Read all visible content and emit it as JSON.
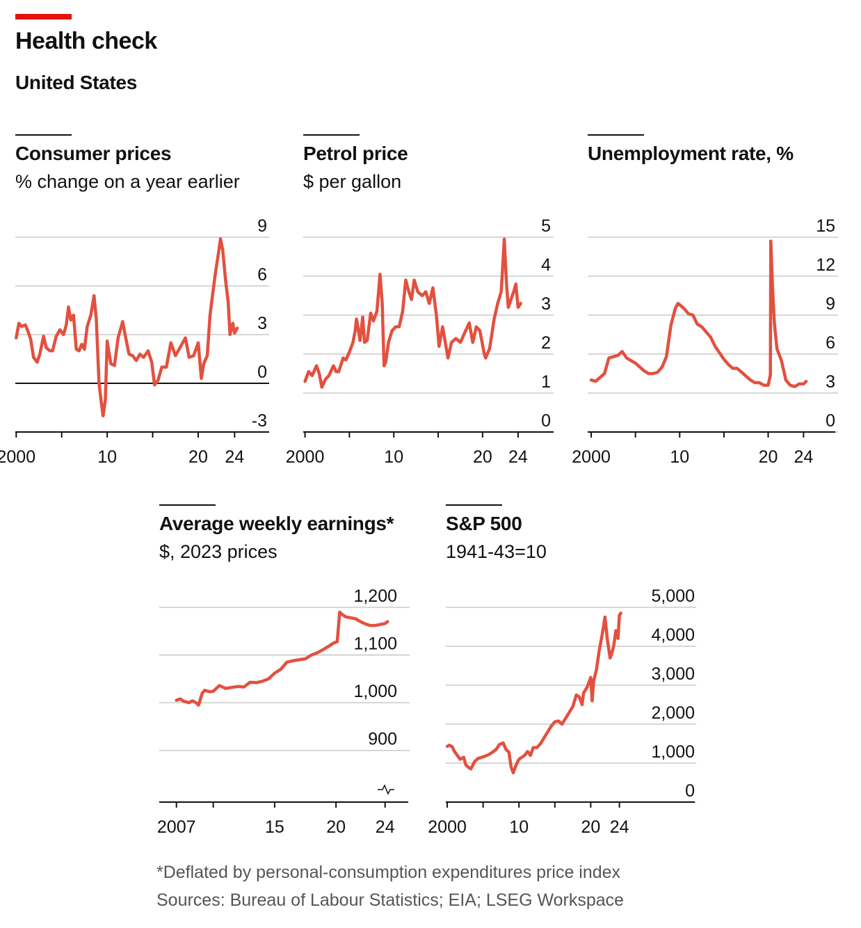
{
  "header": {
    "title": "Health check",
    "subtitle": "United States"
  },
  "footnote": "*Deflated by personal-consumption expenditures price index",
  "source": "Sources: Bureau of Labour Statistics; EIA; LSEG Workspace",
  "colors": {
    "accent": "#e3120b",
    "line": "#e3503f",
    "grid": "#bfbfbf",
    "zero": "#111111"
  },
  "chart_data": [
    {
      "id": "cpi",
      "type": "line",
      "title": "Consumer prices",
      "subtitle": "% change on a year earlier",
      "ylim": [
        -3,
        9
      ],
      "yticks": [
        9,
        6,
        3,
        0,
        -3
      ],
      "xlim": [
        1999.9,
        2027.8
      ],
      "xticks": [
        2000,
        2005,
        2010,
        2015,
        2020,
        2024
      ],
      "xtick_labels": {
        "2000": "2000",
        "2010": "10",
        "2020": "20",
        "2024": "24"
      },
      "zero_line": 0,
      "series": [
        {
          "x": [
            2000,
            2000.3,
            2000.6,
            2001,
            2001.3,
            2001.6,
            2001.9,
            2002.3,
            2002.6,
            2003,
            2003.3,
            2003.7,
            2004,
            2004.4,
            2004.8,
            2005.2,
            2005.5,
            2005.75,
            2006,
            2006.3,
            2006.6,
            2006.9,
            2007.2,
            2007.5,
            2007.8,
            2008.2,
            2008.55,
            2008.8,
            2009.1,
            2009.4,
            2009.55,
            2009.8,
            2010,
            2010.4,
            2010.8,
            2011.2,
            2011.7,
            2012,
            2012.4,
            2012.8,
            2013.2,
            2013.6,
            2014,
            2014.5,
            2014.9,
            2015.2,
            2015.6,
            2016,
            2016.5,
            2017,
            2017.5,
            2018,
            2018.6,
            2019,
            2019.5,
            2020,
            2020.35,
            2020.6,
            2021,
            2021.3,
            2021.55,
            2021.9,
            2022.2,
            2022.45,
            2022.7,
            2023,
            2023.3,
            2023.5,
            2023.8,
            2024,
            2024.3
          ],
          "y": [
            2.8,
            3.7,
            3.5,
            3.6,
            3.2,
            2.7,
            1.6,
            1.3,
            1.8,
            2.9,
            2.2,
            2.0,
            2.0,
            2.9,
            3.3,
            3.0,
            3.6,
            4.7,
            3.9,
            4.2,
            2.1,
            2.0,
            2.4,
            2.1,
            3.5,
            4.2,
            5.4,
            4.0,
            0.0,
            -1.4,
            -2.0,
            -1.0,
            2.6,
            1.2,
            1.1,
            2.8,
            3.8,
            2.9,
            1.8,
            1.7,
            1.4,
            1.8,
            1.6,
            2.0,
            1.3,
            -0.1,
            0.2,
            1.0,
            1.0,
            2.5,
            1.7,
            2.2,
            2.8,
            1.6,
            1.7,
            2.5,
            0.3,
            1.2,
            1.7,
            4.2,
            5.3,
            6.8,
            7.9,
            8.9,
            8.2,
            6.4,
            5.0,
            3.0,
            3.7,
            3.1,
            3.4
          ]
        }
      ]
    },
    {
      "id": "petrol",
      "type": "line",
      "title": "Petrol price",
      "subtitle": "$ per gallon",
      "ylim": [
        0,
        5
      ],
      "yticks": [
        5,
        4,
        3,
        2,
        1,
        0
      ],
      "xlim": [
        1999.8,
        2028.0
      ],
      "xticks": [
        2000,
        2005,
        2010,
        2015,
        2020,
        2024
      ],
      "xtick_labels": {
        "2000": "2000",
        "2010": "10",
        "2020": "20",
        "2024": "24"
      },
      "series": [
        {
          "x": [
            2000,
            2000.4,
            2000.8,
            2001.3,
            2001.6,
            2001.9,
            2002.3,
            2002.7,
            2003.2,
            2003.5,
            2003.8,
            2004.3,
            2004.6,
            2005,
            2005.4,
            2005.65,
            2005.8,
            2006.2,
            2006.5,
            2006.7,
            2007,
            2007.4,
            2007.7,
            2008.1,
            2008.45,
            2008.7,
            2008.9,
            2009.1,
            2009.4,
            2009.8,
            2010.2,
            2010.6,
            2011,
            2011.35,
            2011.7,
            2012,
            2012.3,
            2012.7,
            2013.2,
            2013.6,
            2014,
            2014.4,
            2014.8,
            2015.1,
            2015.5,
            2015.8,
            2016.1,
            2016.5,
            2017,
            2017.5,
            2018,
            2018.5,
            2018.9,
            2019.3,
            2019.7,
            2020.2,
            2020.35,
            2020.8,
            2021.3,
            2021.7,
            2022.1,
            2022.45,
            2022.7,
            2022.9,
            2023.2,
            2023.5,
            2023.75,
            2024,
            2024.3
          ],
          "y": [
            1.3,
            1.55,
            1.45,
            1.7,
            1.5,
            1.15,
            1.35,
            1.45,
            1.7,
            1.55,
            1.55,
            1.9,
            1.85,
            2.05,
            2.3,
            2.6,
            2.9,
            2.35,
            2.95,
            2.3,
            2.35,
            3.05,
            2.85,
            3.1,
            4.05,
            3.3,
            1.7,
            1.8,
            2.3,
            2.6,
            2.7,
            2.7,
            3.1,
            3.9,
            3.6,
            3.4,
            3.9,
            3.6,
            3.5,
            3.6,
            3.3,
            3.7,
            3.0,
            2.2,
            2.7,
            2.3,
            1.9,
            2.3,
            2.4,
            2.3,
            2.55,
            2.8,
            2.3,
            2.7,
            2.6,
            2.0,
            1.9,
            2.15,
            2.9,
            3.3,
            3.6,
            4.95,
            3.8,
            3.2,
            3.4,
            3.6,
            3.8,
            3.2,
            3.3
          ]
        }
      ]
    },
    {
      "id": "unemployment",
      "type": "line",
      "title": "Unemployment rate, %",
      "subtitle": "",
      "ylim": [
        0,
        15
      ],
      "yticks": [
        15,
        12,
        9,
        6,
        3,
        0
      ],
      "xlim": [
        1999.6,
        2027.9
      ],
      "xticks": [
        2000,
        2005,
        2010,
        2015,
        2020,
        2024
      ],
      "xtick_labels": {
        "2000": "2000",
        "2010": "10",
        "2020": "20",
        "2024": "24"
      },
      "series": [
        {
          "x": [
            2000,
            2000.5,
            2001,
            2001.5,
            2002,
            2002.5,
            2003,
            2003.5,
            2004,
            2004.5,
            2005,
            2005.5,
            2006,
            2006.5,
            2007,
            2007.5,
            2008,
            2008.5,
            2009,
            2009.5,
            2009.8,
            2010,
            2010.5,
            2011,
            2011.5,
            2012,
            2012.5,
            2013,
            2013.5,
            2014,
            2014.5,
            2015,
            2015.5,
            2016,
            2016.5,
            2017,
            2017.5,
            2018,
            2018.5,
            2019,
            2019.5,
            2020,
            2020.25,
            2020.3,
            2020.5,
            2020.7,
            2021,
            2021.5,
            2022,
            2022.5,
            2023,
            2023.5,
            2024,
            2024.3
          ],
          "y": [
            4.0,
            3.9,
            4.2,
            4.5,
            5.7,
            5.8,
            5.9,
            6.2,
            5.7,
            5.5,
            5.3,
            5.0,
            4.7,
            4.5,
            4.5,
            4.6,
            5.0,
            5.8,
            8.2,
            9.5,
            9.9,
            9.8,
            9.5,
            9.1,
            9.0,
            8.3,
            8.1,
            7.7,
            7.3,
            6.6,
            6.1,
            5.6,
            5.2,
            4.9,
            4.9,
            4.6,
            4.3,
            4.0,
            3.8,
            3.8,
            3.6,
            3.6,
            4.4,
            14.7,
            11.0,
            8.4,
            6.4,
            5.5,
            4.0,
            3.6,
            3.5,
            3.7,
            3.7,
            3.9
          ]
        }
      ]
    },
    {
      "id": "earnings",
      "type": "line",
      "title": "Average weekly earnings*",
      "subtitle": "$, 2023 prices",
      "ylim": [
        850,
        1200
      ],
      "yticks": [
        1200,
        1100,
        1000,
        900
      ],
      "ytick_labels": {
        "1200": "1,200",
        "1100": "1,100",
        "1000": "1,000",
        "900": "900"
      },
      "xlim": [
        2005.6,
        2026.0
      ],
      "xticks": [
        2007,
        2010,
        2015,
        2020,
        2024
      ],
      "xtick_labels": {
        "2007": "2007",
        "2015": "15",
        "2020": "20",
        "2024": "24"
      },
      "axis_break": true,
      "series": [
        {
          "x": [
            2007,
            2007.3,
            2007.6,
            2008,
            2008.3,
            2008.6,
            2008.8,
            2009.1,
            2009.3,
            2009.7,
            2010,
            2010.5,
            2011,
            2011.5,
            2012,
            2012.5,
            2013,
            2013.5,
            2014,
            2014.5,
            2015,
            2015.5,
            2016,
            2016.5,
            2017,
            2017.5,
            2018,
            2018.5,
            2019,
            2019.5,
            2019.8,
            2020.1,
            2020.3,
            2020.5,
            2020.8,
            2021.2,
            2021.6,
            2022,
            2022.4,
            2022.8,
            2023.2,
            2023.6,
            2024,
            2024.2
          ],
          "y": [
            1005,
            1008,
            1003,
            1000,
            1004,
            1000,
            995,
            1020,
            1026,
            1023,
            1024,
            1036,
            1030,
            1032,
            1034,
            1033,
            1043,
            1042,
            1045,
            1050,
            1062,
            1070,
            1085,
            1088,
            1090,
            1092,
            1100,
            1105,
            1112,
            1120,
            1125,
            1128,
            1190,
            1185,
            1180,
            1178,
            1176,
            1170,
            1165,
            1162,
            1162,
            1164,
            1166,
            1170
          ]
        }
      ]
    },
    {
      "id": "sp500",
      "type": "line",
      "title": "S&P 500",
      "subtitle": "1941-43=10",
      "ylim": [
        0,
        5000
      ],
      "yticks": [
        5000,
        4000,
        3000,
        2000,
        1000,
        0
      ],
      "ytick_labels": {
        "5000": "5,000",
        "4000": "4,000",
        "3000": "3,000",
        "2000": "2,000",
        "1000": "1,000",
        "0": "0"
      },
      "xlim": [
        1999.8,
        2034.7
      ],
      "xticks": [
        2000,
        2005,
        2010,
        2015,
        2020,
        2024
      ],
      "xtick_labels": {
        "2000": "2000",
        "2010": "10",
        "2020": "20",
        "2024": "24"
      },
      "series": [
        {
          "x": [
            2000,
            2000.3,
            2000.7,
            2001,
            2001.4,
            2001.8,
            2002.3,
            2002.6,
            2002.9,
            2003.3,
            2003.8,
            2004.3,
            2004.8,
            2005.3,
            2005.8,
            2006.3,
            2006.8,
            2007.3,
            2007.8,
            2008.2,
            2008.6,
            2008.9,
            2009.2,
            2009.6,
            2010,
            2010.4,
            2010.8,
            2011.2,
            2011.6,
            2012,
            2012.5,
            2013,
            2013.5,
            2014,
            2014.5,
            2015,
            2015.5,
            2016,
            2016.5,
            2017,
            2017.5,
            2018,
            2018.4,
            2018.8,
            2019,
            2019.5,
            2020,
            2020.2,
            2020.4,
            2020.8,
            2021.2,
            2021.6,
            2021.99,
            2022.3,
            2022.7,
            2022.9,
            2023.2,
            2023.5,
            2023.8,
            2024,
            2024.2
          ],
          "y": [
            1430,
            1460,
            1420,
            1300,
            1200,
            1100,
            1150,
            950,
            900,
            850,
            1040,
            1120,
            1150,
            1180,
            1220,
            1280,
            1350,
            1480,
            1520,
            1350,
            1280,
            900,
            750,
            950,
            1100,
            1150,
            1200,
            1300,
            1200,
            1400,
            1400,
            1500,
            1650,
            1800,
            1950,
            2060,
            2080,
            2000,
            2150,
            2300,
            2450,
            2750,
            2700,
            2500,
            2800,
            2950,
            3200,
            2600,
            3100,
            3400,
            3900,
            4300,
            4750,
            4200,
            3700,
            3800,
            4000,
            4400,
            4200,
            4800,
            4850
          ]
        }
      ]
    }
  ]
}
